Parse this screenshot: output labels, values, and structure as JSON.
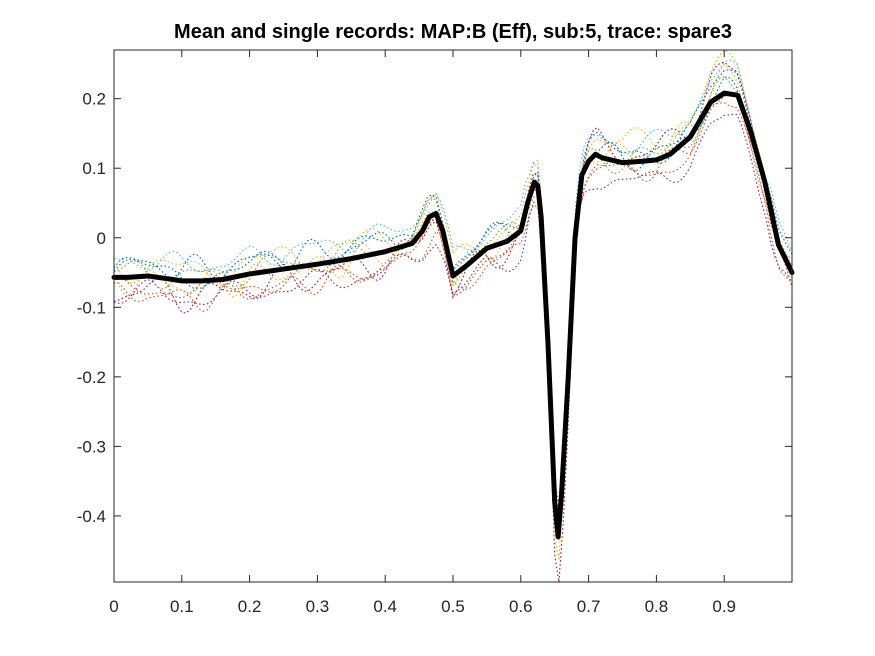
{
  "chart_data": {
    "type": "line",
    "title": "Mean and single records: MAP:B (Eff), sub:5, trace: spare3",
    "xlim": [
      0,
      1
    ],
    "ylim": [
      -0.495,
      0.27
    ],
    "x_ticks": [
      0,
      0.1,
      0.2,
      0.3,
      0.4,
      0.5,
      0.6,
      0.7,
      0.8,
      0.9
    ],
    "x_tick_labels": [
      "0",
      "0.1",
      "0.2",
      "0.3",
      "0.4",
      "0.5",
      "0.6",
      "0.7",
      "0.8",
      "0.9"
    ],
    "y_ticks": [
      0.2,
      0.1,
      0,
      -0.1,
      -0.2,
      -0.3,
      -0.4
    ],
    "y_tick_labels": [
      "0.2",
      "0.1",
      "0",
      "-0.1",
      "-0.2",
      "-0.3",
      "-0.4"
    ],
    "grid": false,
    "legend": "none",
    "mean": {
      "color": "#000000",
      "style": "solid-thick",
      "x": [
        0,
        0.02,
        0.05,
        0.08,
        0.1,
        0.13,
        0.16,
        0.2,
        0.25,
        0.3,
        0.35,
        0.4,
        0.44,
        0.455,
        0.465,
        0.475,
        0.485,
        0.5,
        0.52,
        0.55,
        0.58,
        0.6,
        0.61,
        0.62,
        0.625,
        0.63,
        0.64,
        0.65,
        0.655,
        0.66,
        0.67,
        0.68,
        0.69,
        0.7,
        0.71,
        0.72,
        0.75,
        0.78,
        0.8,
        0.82,
        0.85,
        0.88,
        0.9,
        0.92,
        0.94,
        0.96,
        0.98,
        1.0
      ],
      "y": [
        -0.057,
        -0.057,
        -0.055,
        -0.059,
        -0.062,
        -0.062,
        -0.06,
        -0.052,
        -0.045,
        -0.038,
        -0.03,
        -0.02,
        -0.008,
        0.01,
        0.03,
        0.035,
        0.01,
        -0.055,
        -0.04,
        -0.015,
        -0.005,
        0.01,
        0.05,
        0.08,
        0.075,
        0.03,
        -0.15,
        -0.38,
        -0.43,
        -0.37,
        -0.2,
        0.0,
        0.09,
        0.11,
        0.12,
        0.115,
        0.108,
        0.11,
        0.112,
        0.12,
        0.145,
        0.195,
        0.208,
        0.205,
        0.15,
        0.08,
        -0.01,
        -0.05
      ]
    },
    "singles": {
      "style": "dotted",
      "colors": [
        "#0072BD",
        "#D95319",
        "#EDB120",
        "#7E2F8E",
        "#77AC30",
        "#4DBEEE",
        "#A2142F",
        "#0072BD",
        "#D95319",
        "#EDB120"
      ],
      "offsets": [
        0.012,
        -0.018,
        0.022,
        -0.03,
        0.006,
        0.028,
        -0.01,
        0.016,
        -0.024,
        0.0
      ],
      "scales": [
        1.05,
        0.95,
        1.12,
        0.9,
        1.0,
        1.08,
        1.18,
        0.97,
        1.02,
        1.1
      ],
      "wiggle": [
        0.014,
        0.012,
        0.016,
        0.013,
        0.015,
        0.012,
        0.017,
        0.014,
        0.013,
        0.015
      ]
    }
  }
}
